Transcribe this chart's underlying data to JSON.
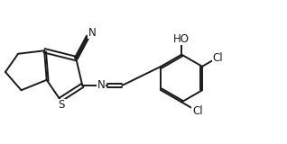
{
  "background_color": "#ffffff",
  "line_color": "#1a1a1a",
  "line_width": 1.4,
  "text_color": "#1a1a1a",
  "font_size": 8.5,
  "xlim": [
    0,
    3.6
  ],
  "ylim": [
    0,
    1.3
  ],
  "figsize": [
    3.18,
    1.6
  ],
  "dpi": 100
}
